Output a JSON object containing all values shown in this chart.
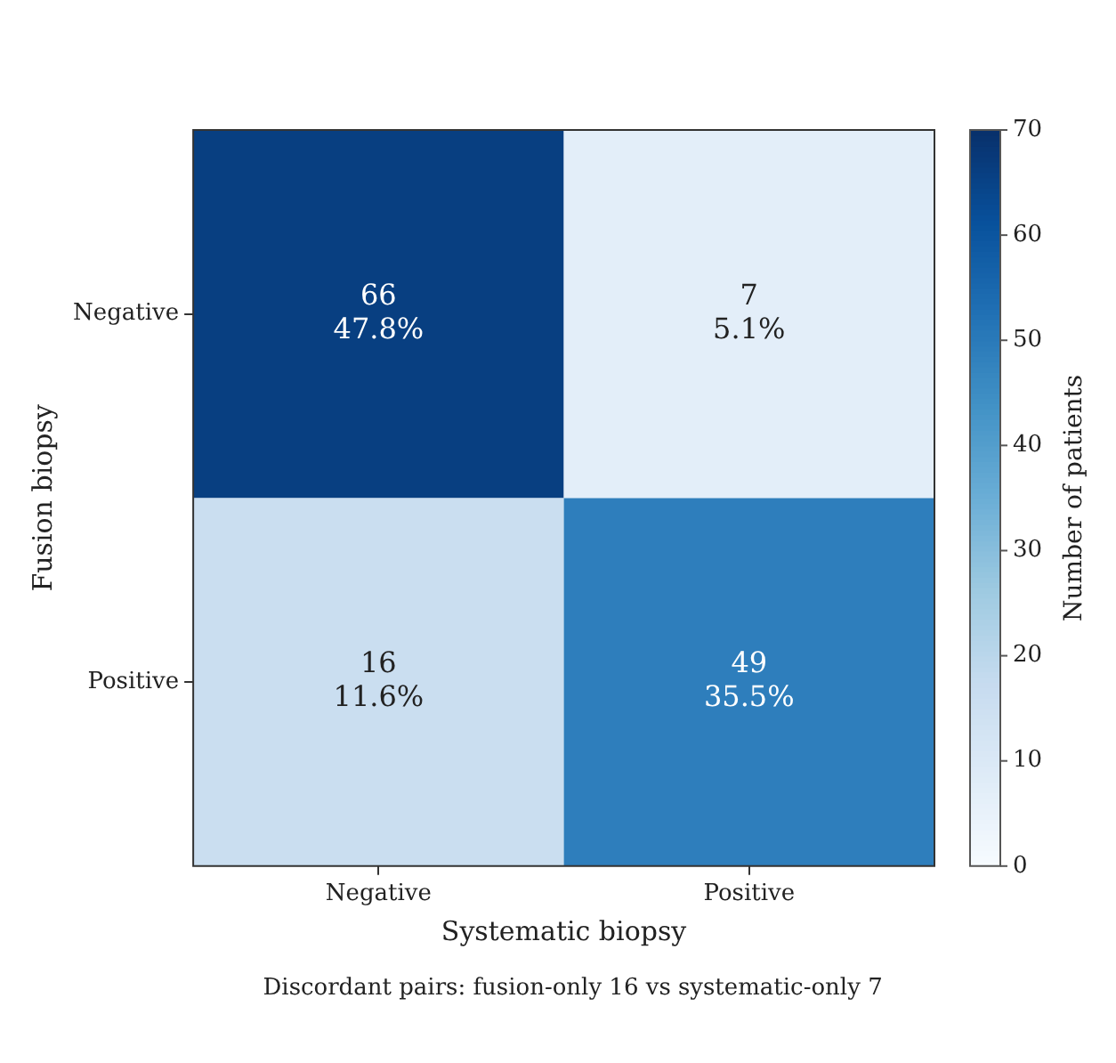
{
  "chart_data": {
    "type": "heatmap",
    "xlabel": "Systematic biopsy",
    "ylabel": "Fusion biopsy",
    "clabel": "Number of patients",
    "categories": [
      "Negative",
      "Positive"
    ],
    "y_categories": [
      "Negative",
      "Positive"
    ],
    "cells": [
      [
        66,
        7
      ],
      [
        16,
        49
      ]
    ],
    "cell_labels": [
      [
        "66\n47.8%",
        "7\n5.1%"
      ],
      [
        "16\n11.6%",
        "49\n35.5%"
      ]
    ],
    "clim": [
      0,
      70
    ],
    "cticks": [
      0,
      10,
      20,
      30,
      40,
      50,
      60,
      70
    ],
    "annotations": [
      "Discordant pairs: fusion-only 16 vs systematic-only 7"
    ]
  }
}
